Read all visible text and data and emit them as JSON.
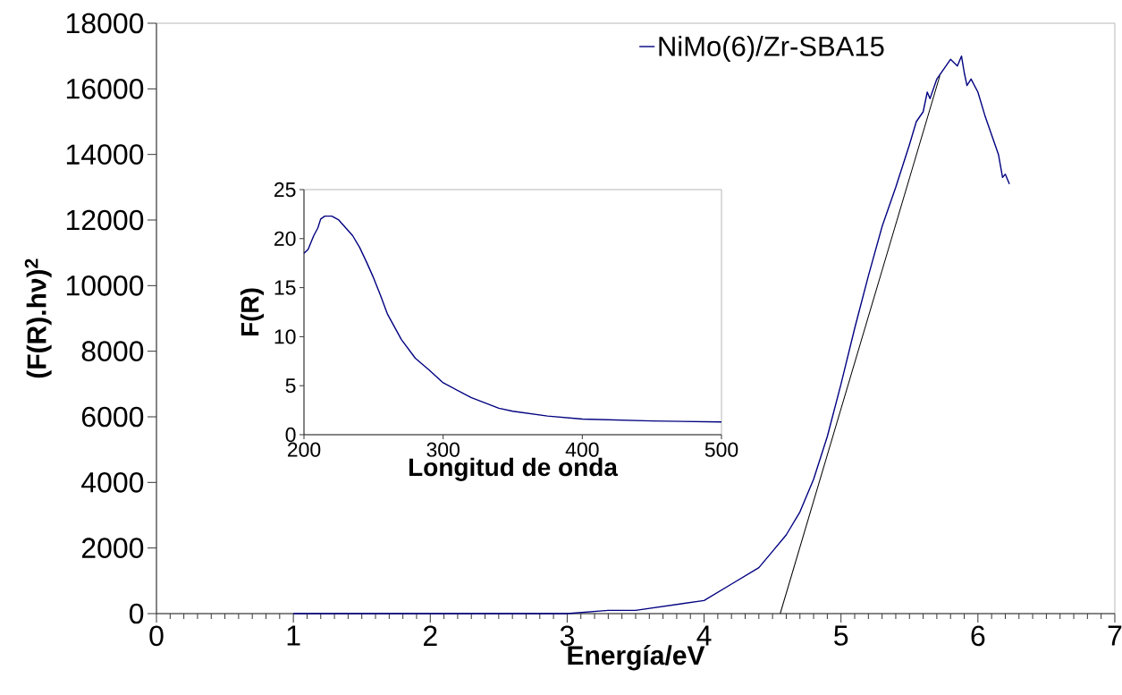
{
  "chart_data": [
    {
      "type": "line",
      "xlabel": "Energía/eV",
      "ylabel": "(F(R).hν)$^{2}$",
      "xlim": [
        0,
        7
      ],
      "ylim": [
        0,
        18000
      ],
      "xticks": [
        0,
        1,
        2,
        3,
        4,
        5,
        6,
        7
      ],
      "yticks": [
        0,
        2000,
        4000,
        6000,
        8000,
        10000,
        12000,
        14000,
        16000,
        18000
      ],
      "legend": "top",
      "grid": false,
      "marker": "none",
      "series": [
        {
          "name": "NiMo(6)/Zr-SBA15",
          "color": "#000080",
          "x": [
            1,
            2,
            3,
            3.3,
            3.5,
            4,
            4.2,
            4.4,
            4.5,
            4.6,
            4.7,
            4.8,
            4.9,
            5.0,
            5.1,
            5.2,
            5.3,
            5.4,
            5.5,
            5.55,
            5.6,
            5.63,
            5.65,
            5.7,
            5.75,
            5.8,
            5.85,
            5.88,
            5.9,
            5.92,
            5.95,
            6.0,
            6.05,
            6.1,
            6.15,
            6.18,
            6.2,
            6.23
          ],
          "values": [
            0,
            0,
            0,
            100,
            100,
            400,
            900,
            1400,
            1900,
            2400,
            3100,
            4100,
            5400,
            7000,
            8700,
            10300,
            11800,
            13000,
            14300,
            15000,
            15300,
            15900,
            15700,
            16300,
            16600,
            16900,
            16700,
            17000,
            16500,
            16100,
            16300,
            15900,
            15200,
            14600,
            14000,
            13300,
            13400,
            13100
          ]
        },
        {
          "color": "#000000",
          "x": [
            4.556,
            5.722
          ],
          "values": [
            0,
            16400
          ]
        }
      ]
    },
    {
      "type": "line",
      "xlabel": "Longitud de onda",
      "ylabel": "F(R)",
      "xlim": [
        200,
        500
      ],
      "ylim": [
        0,
        25
      ],
      "xticks": [
        200,
        300,
        400,
        500
      ],
      "yticks": [
        0,
        5,
        10,
        15,
        20,
        25
      ],
      "grid": false,
      "marker": "none",
      "series": [
        {
          "color": "#000080",
          "x": [
            200,
            203,
            207,
            210,
            212,
            215,
            220,
            225,
            230,
            235,
            240,
            245,
            250,
            255,
            260,
            270,
            280,
            290,
            300,
            320,
            340,
            350,
            375,
            400,
            450,
            500
          ],
          "values": [
            18.5,
            18.9,
            20.3,
            21.1,
            22.0,
            22.3,
            22.3,
            21.9,
            21.1,
            20.3,
            19.1,
            17.6,
            16.0,
            14.2,
            12.3,
            9.7,
            7.8,
            6.6,
            5.3,
            3.8,
            2.7,
            2.4,
            1.9,
            1.6,
            1.4,
            1.3
          ]
        }
      ]
    }
  ]
}
